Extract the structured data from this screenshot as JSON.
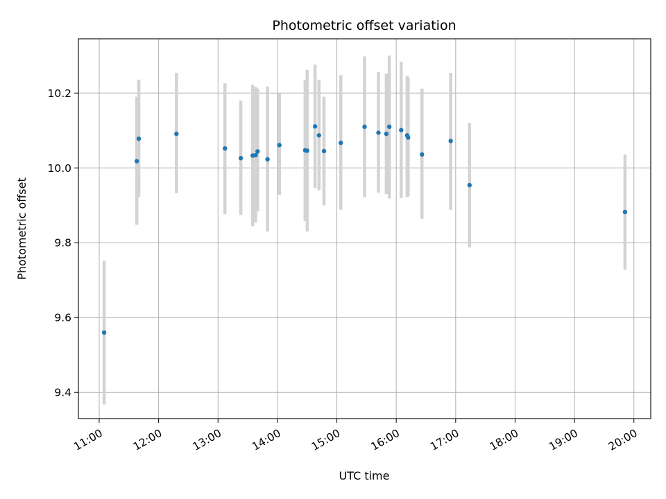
{
  "chart_data": {
    "type": "scatter",
    "title": "Photometric offset variation",
    "xlabel": "UTC time",
    "ylabel": "Photometric offset",
    "xlim": [
      "10:39",
      "20:17"
    ],
    "ylim": [
      9.33,
      10.345
    ],
    "x_ticks": [
      "11:00",
      "12:00",
      "13:00",
      "14:00",
      "15:00",
      "16:00",
      "17:00",
      "18:00",
      "19:00",
      "20:00"
    ],
    "y_ticks": [
      "9.4",
      "9.6",
      "9.8",
      "10.0",
      "10.2"
    ],
    "grid": true,
    "colors": {
      "point": "#1f77b4",
      "errorbar": "#d3d3d3",
      "grid": "#b0b0b0"
    },
    "points": [
      {
        "x": "11:05",
        "y": 9.56,
        "err_low": 9.368,
        "err_high": 9.752
      },
      {
        "x": "11:38",
        "y": 10.018,
        "err_low": 9.848,
        "err_high": 10.19
      },
      {
        "x": "11:40",
        "y": 10.078,
        "err_low": 9.922,
        "err_high": 10.236
      },
      {
        "x": "12:18",
        "y": 10.091,
        "err_low": 9.932,
        "err_high": 10.254
      },
      {
        "x": "13:07",
        "y": 10.052,
        "err_low": 9.876,
        "err_high": 10.226
      },
      {
        "x": "13:23",
        "y": 10.026,
        "err_low": 9.874,
        "err_high": 10.18
      },
      {
        "x": "13:35",
        "y": 10.033,
        "err_low": 9.844,
        "err_high": 10.222
      },
      {
        "x": "13:38",
        "y": 10.034,
        "err_low": 9.854,
        "err_high": 10.216
      },
      {
        "x": "13:40",
        "y": 10.044,
        "err_low": 9.884,
        "err_high": 10.212
      },
      {
        "x": "13:50",
        "y": 10.023,
        "err_low": 9.83,
        "err_high": 10.218
      },
      {
        "x": "14:02",
        "y": 10.061,
        "err_low": 9.928,
        "err_high": 10.2
      },
      {
        "x": "14:28",
        "y": 10.047,
        "err_low": 9.858,
        "err_high": 10.236
      },
      {
        "x": "14:30",
        "y": 10.046,
        "err_low": 9.83,
        "err_high": 10.262
      },
      {
        "x": "14:38",
        "y": 10.111,
        "err_low": 9.946,
        "err_high": 10.276
      },
      {
        "x": "14:42",
        "y": 10.087,
        "err_low": 9.94,
        "err_high": 10.236
      },
      {
        "x": "14:47",
        "y": 10.045,
        "err_low": 9.9,
        "err_high": 10.19
      },
      {
        "x": "15:04",
        "y": 10.067,
        "err_low": 9.888,
        "err_high": 10.248
      },
      {
        "x": "15:28",
        "y": 10.11,
        "err_low": 9.922,
        "err_high": 10.298
      },
      {
        "x": "15:42",
        "y": 10.094,
        "err_low": 9.934,
        "err_high": 10.256
      },
      {
        "x": "15:50",
        "y": 10.091,
        "err_low": 9.93,
        "err_high": 10.252
      },
      {
        "x": "15:53",
        "y": 10.11,
        "err_low": 9.918,
        "err_high": 10.3
      },
      {
        "x": "16:05",
        "y": 10.101,
        "err_low": 9.92,
        "err_high": 10.284
      },
      {
        "x": "16:11",
        "y": 10.087,
        "err_low": 9.922,
        "err_high": 10.246
      },
      {
        "x": "16:12",
        "y": 10.081,
        "err_low": 9.924,
        "err_high": 10.24
      },
      {
        "x": "16:26",
        "y": 10.036,
        "err_low": 9.864,
        "err_high": 10.212
      },
      {
        "x": "16:55",
        "y": 10.072,
        "err_low": 9.888,
        "err_high": 10.254
      },
      {
        "x": "17:14",
        "y": 9.954,
        "err_low": 9.788,
        "err_high": 10.12
      },
      {
        "x": "19:51",
        "y": 9.882,
        "err_low": 9.728,
        "err_high": 10.036
      }
    ]
  }
}
